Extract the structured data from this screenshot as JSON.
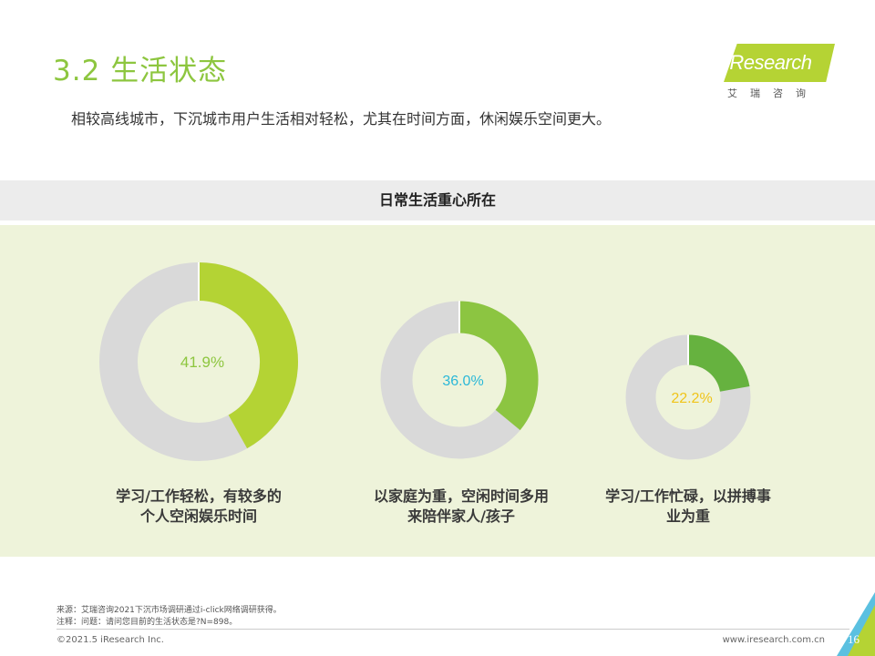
{
  "header": {
    "title": "3.2 生活状态",
    "subtitle": "相较高线城市，下沉城市用户生活相对轻松，尤其在时间方面，休闲娱乐空间更大。"
  },
  "logo": {
    "brand": "iResearch",
    "brand_cn": "艾瑞咨询",
    "accent_color": "#b5d334"
  },
  "chart_data": {
    "type": "pie",
    "title": "日常生活重心所在",
    "series": [
      {
        "name": "学习/工作轻松，有较多的个人空闲娱乐时间",
        "label_lines": [
          "学习/工作轻松，有较多的",
          "个人空闲娱乐时间"
        ],
        "value": 41.9,
        "value_label": "41.9%",
        "color": "#b4d334",
        "label_color": "#8dc63f"
      },
      {
        "name": "以家庭为重，空闲时间多用来陪伴家人/孩子",
        "label_lines": [
          "以家庭为重，空闲时间多用",
          "来陪伴家人/孩子"
        ],
        "value": 36.0,
        "value_label": "36.0%",
        "color": "#8cc541",
        "label_color": "#2bb8d8"
      },
      {
        "name": "学习/工作忙碌，以拼搏事业为重",
        "label_lines": [
          "学习/工作忙碌，以拼搏事",
          "业为重"
        ],
        "value": 22.2,
        "value_label": "22.2%",
        "color": "#66b23f",
        "label_color": "#f0c419"
      }
    ],
    "remainder_color": "#d9d9d9",
    "background_color": "#eef3da"
  },
  "footer": {
    "source": "来源：艾瑞咨询2021下沉市场调研通过i-click网络调研获得。",
    "note": "注释：问题：请问您目前的生活状态是?N=898。",
    "copyright": "©2021.5 iResearch Inc.",
    "website": "www.iresearch.com.cn",
    "page_number": "16"
  }
}
